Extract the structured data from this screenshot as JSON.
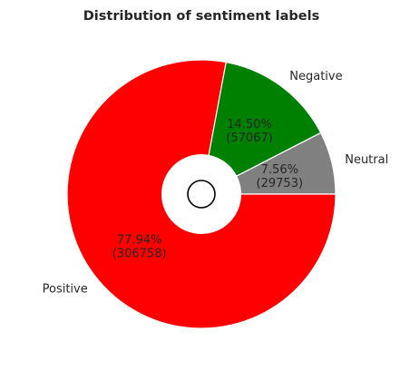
{
  "chart_data": {
    "type": "pie",
    "title": "Distribution of sentiment labels",
    "slices": [
      {
        "label": "Neutral",
        "value": 29753,
        "percent": "7.56%",
        "count": "(29753)",
        "color": "#808080"
      },
      {
        "label": "Negative",
        "value": 57067,
        "percent": "14.50%",
        "count": "(57067)",
        "color": "#008000"
      },
      {
        "label": "Positive",
        "value": 306758,
        "percent": "77.94%",
        "count": "(306758)",
        "color": "#ff0000"
      }
    ],
    "donut_hole": true,
    "wedge_edge_color": "#ffffff"
  }
}
